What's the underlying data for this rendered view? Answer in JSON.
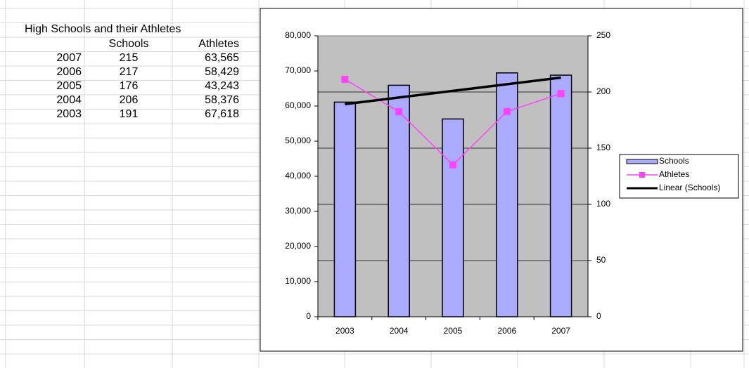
{
  "table": {
    "title": "High Schools and their Athletes",
    "headers": [
      "Schools",
      "Athletes"
    ],
    "rows": [
      [
        "2007",
        "215",
        "63,565"
      ],
      [
        "2006",
        "217",
        "58,429"
      ],
      [
        "2005",
        "176",
        "43,243"
      ],
      [
        "2004",
        "206",
        "58,376"
      ],
      [
        "2003",
        "191",
        "67,618"
      ]
    ]
  },
  "chart_data": {
    "type": "bar",
    "categories": [
      "2003",
      "2004",
      "2005",
      "2006",
      "2007"
    ],
    "series": [
      {
        "name": "Schools",
        "type": "bar",
        "axis": "y2",
        "color": "#aaaaff",
        "values": [
          191,
          206,
          176,
          217,
          215
        ]
      },
      {
        "name": "Athletes",
        "type": "line",
        "color": "#ff44ff",
        "values": [
          67618,
          58376,
          43243,
          58429,
          63565
        ]
      }
    ],
    "trendline": {
      "name": "Linear (Schools)",
      "color": "#000000"
    },
    "ylim": [
      0,
      80000
    ],
    "yticks": [
      0,
      {
        "value": 10000,
        "label": "10,000"
      },
      {
        "value": 20000,
        "label": "20,000"
      },
      {
        "value": 30000,
        "label": "30,000"
      },
      {
        "value": 40000,
        "label": "40,000"
      },
      {
        "value": 50000,
        "label": "50,000"
      },
      {
        "value": 60000,
        "label": "60,000"
      },
      {
        "value": 70000,
        "label": "70,000"
      },
      {
        "value": 80000,
        "label": "80,000"
      }
    ],
    "y2lim": [
      0,
      250
    ],
    "y2ticks": [
      0,
      50,
      100,
      150,
      200,
      250
    ],
    "grid": "y2",
    "plot_background": "#c0c0c0",
    "legend": "right"
  }
}
